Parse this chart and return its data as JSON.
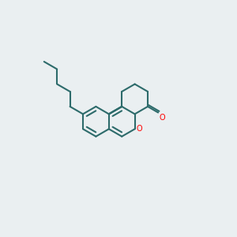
{
  "bg": "#eaeff1",
  "bc": "#2d6b6b",
  "oc": "#ff0000",
  "lw": 1.5,
  "lw2": 1.5
}
